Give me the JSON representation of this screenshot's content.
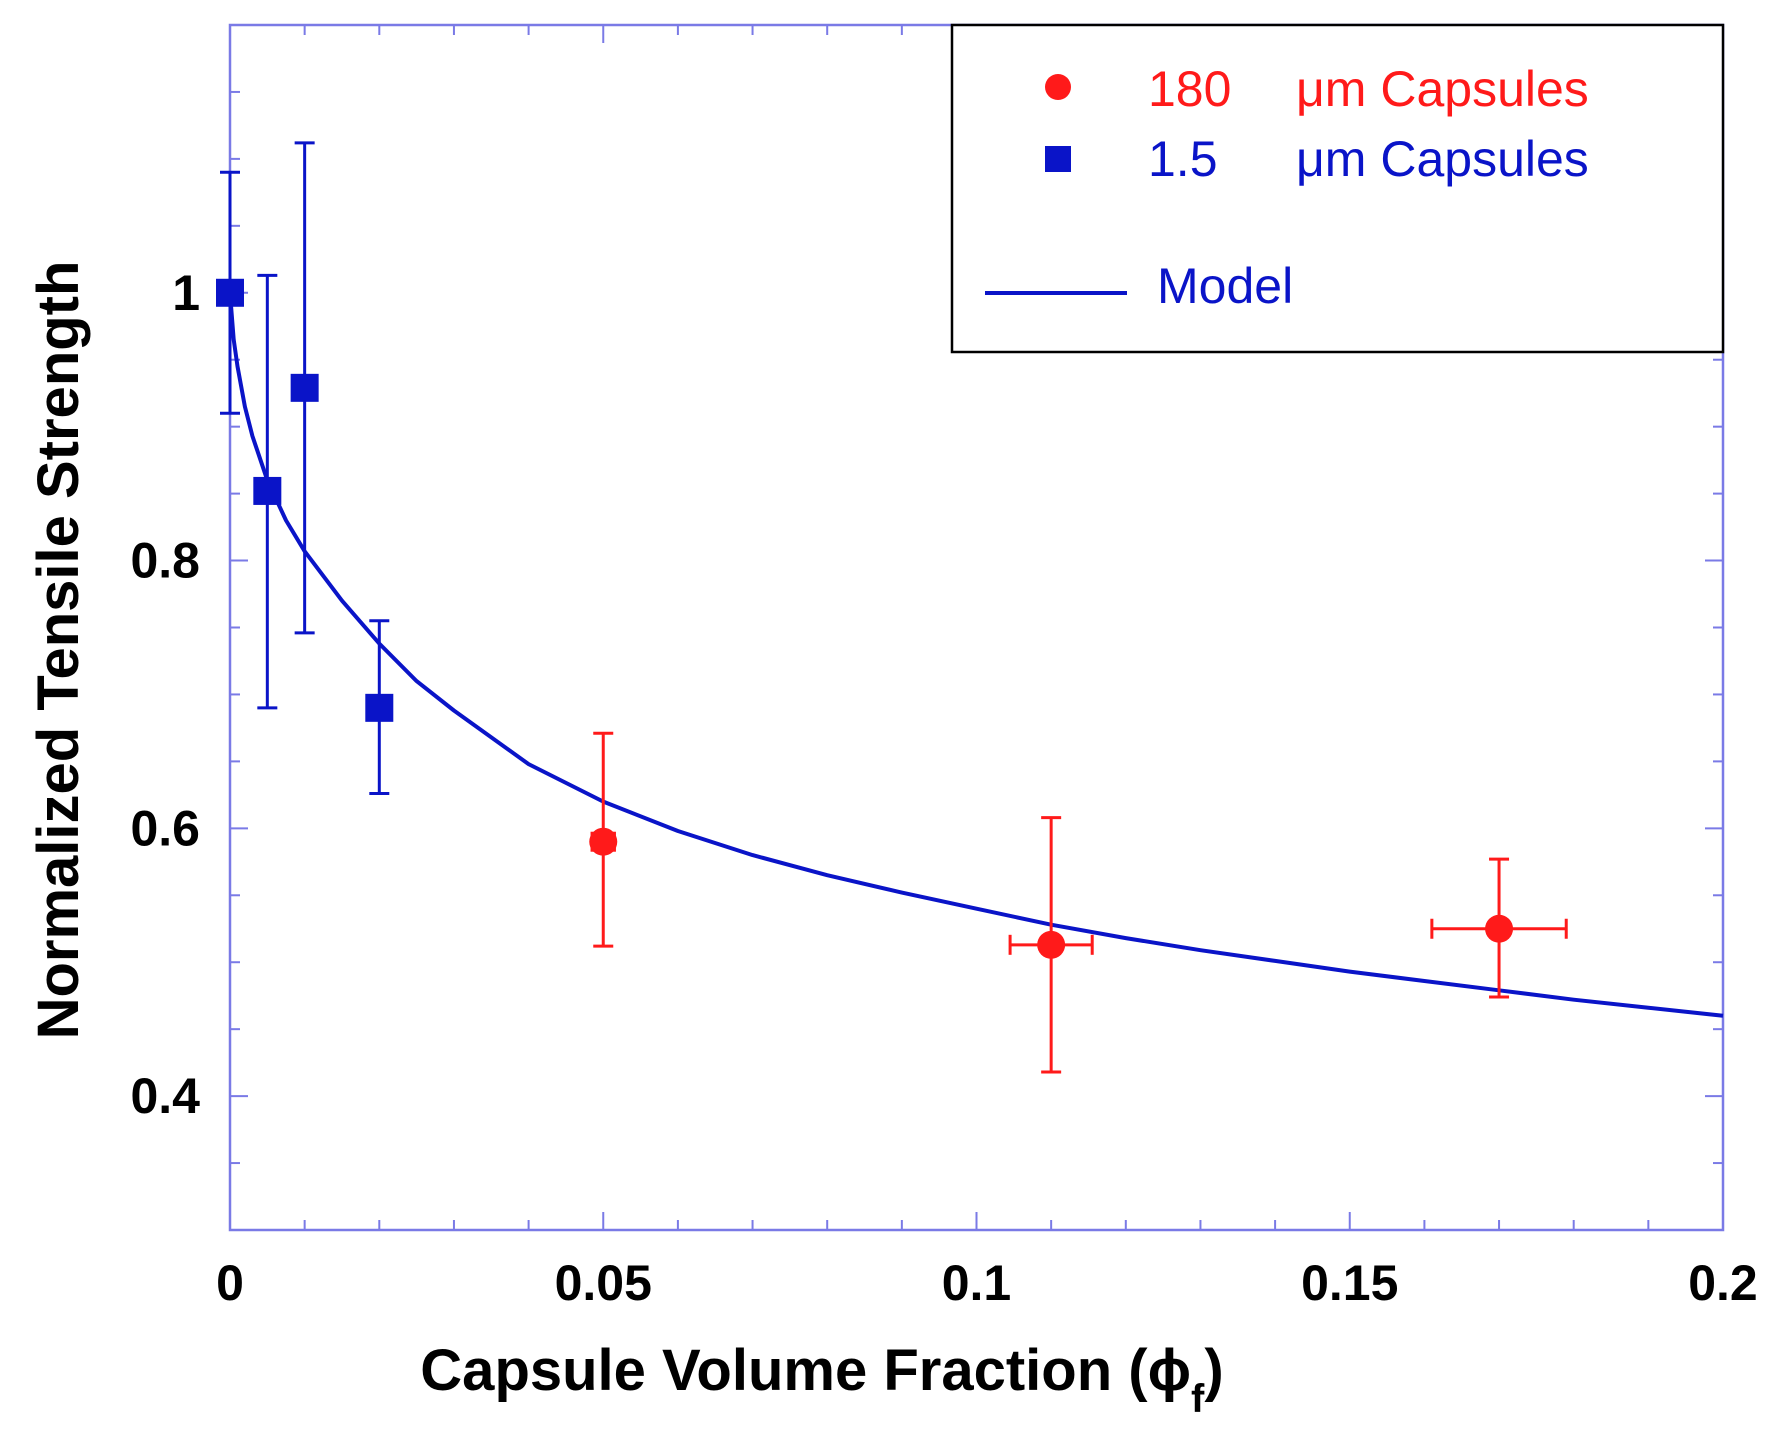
{
  "chart_data": {
    "type": "scatter",
    "title": "",
    "xlabel": "Capsule Volume Fraction (",
    "xlabel_symbol": "ϕ",
    "xlabel_subscript": "f",
    "xlabel_close": ")",
    "ylabel": "Normalized Tensile Strength",
    "xlim": [
      0,
      0.2
    ],
    "ylim": [
      0.3,
      1.2
    ],
    "xticks": [
      0,
      0.05,
      0.1,
      0.15,
      0.2
    ],
    "xtick_labels": [
      "0",
      "0.05",
      "0.1",
      "0.15",
      "0.2"
    ],
    "yticks": [
      0.4,
      0.6,
      0.8,
      1.0
    ],
    "ytick_labels": [
      "0.4",
      "0.6",
      "0.8",
      "1"
    ],
    "legend_position": "top-right",
    "series": [
      {
        "name": "180 μm Capsules",
        "legend_size": "180",
        "legend_unit": "μm Capsules",
        "marker": "circle",
        "color": "#ff1a1a",
        "points": [
          {
            "x": 0.05,
            "y": 0.59,
            "yerr_low": 0.512,
            "yerr_high": 0.671,
            "xerr": 0.0015
          },
          {
            "x": 0.11,
            "y": 0.513,
            "yerr_low": 0.418,
            "yerr_high": 0.608,
            "xerr": 0.0055
          },
          {
            "x": 0.17,
            "y": 0.525,
            "yerr_low": 0.474,
            "yerr_high": 0.577,
            "xerr": 0.009
          }
        ]
      },
      {
        "name": "1.5 μm Capsules",
        "legend_size": "1.5",
        "legend_unit": "μm Capsules",
        "marker": "square",
        "color": "#0a14c8",
        "points": [
          {
            "x": 0.0,
            "y": 1.0,
            "yerr_low": 0.91,
            "yerr_high": 1.09,
            "xerr": 0
          },
          {
            "x": 0.005,
            "y": 0.852,
            "yerr_low": 0.69,
            "yerr_high": 1.013,
            "xerr": 0
          },
          {
            "x": 0.01,
            "y": 0.929,
            "yerr_low": 0.746,
            "yerr_high": 1.112,
            "xerr": 0
          },
          {
            "x": 0.02,
            "y": 0.69,
            "yerr_low": 0.626,
            "yerr_high": 0.755,
            "xerr": 0
          }
        ]
      }
    ],
    "model": {
      "name": "Model",
      "color": "#0a14c8",
      "x": [
        0,
        0.0005,
        0.001,
        0.002,
        0.003,
        0.005,
        0.0075,
        0.01,
        0.015,
        0.02,
        0.025,
        0.03,
        0.04,
        0.05,
        0.06,
        0.07,
        0.08,
        0.09,
        0.1,
        0.11,
        0.12,
        0.13,
        0.14,
        0.15,
        0.16,
        0.17,
        0.18,
        0.19,
        0.2
      ],
      "y": [
        1.0,
        0.965,
        0.945,
        0.915,
        0.893,
        0.86,
        0.83,
        0.807,
        0.77,
        0.738,
        0.71,
        0.688,
        0.648,
        0.62,
        0.598,
        0.58,
        0.565,
        0.552,
        0.54,
        0.528,
        0.518,
        0.509,
        0.501,
        0.493,
        0.486,
        0.479,
        0.472,
        0.466,
        0.46
      ]
    }
  }
}
